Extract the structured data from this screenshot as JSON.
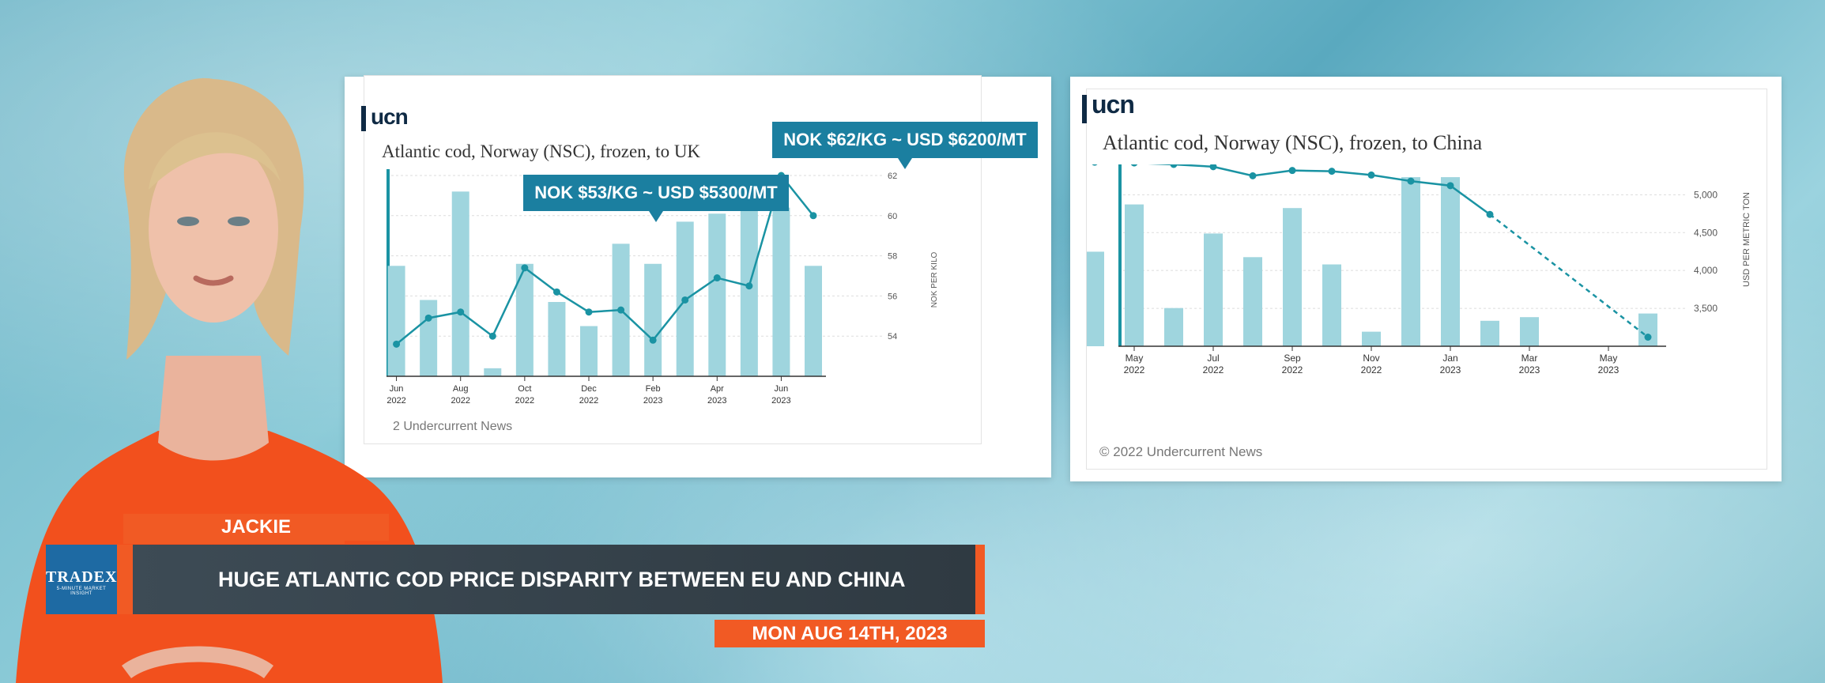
{
  "lower_third": {
    "presenter_name": "JACKIE",
    "headline": "HUGE ATLANTIC COD PRICE DISPARITY BETWEEN EU AND CHINA",
    "date": "MON AUG 14TH, 2023",
    "brand": "TRADEX",
    "brand_sub": "5-MINUTE MARKET INSIGHT"
  },
  "colors": {
    "accent_orange": "#f15a24",
    "chart_teal": "#1a93a3",
    "bar_teal": "#9fd5de",
    "callout_blue": "#1b7fa0"
  },
  "left_panel": {
    "logo": "ucn",
    "copyright": "2 Undercurrent News",
    "callout_low": "NOK $53/KG ~ USD $5300/MT",
    "callout_high": "NOK $62/KG ~ USD $6200/MT"
  },
  "right_panel": {
    "logo": "ucn",
    "copyright": "© 2022 Undercurrent News"
  },
  "chart_data": [
    {
      "type": "bar",
      "title": "Atlantic cod, Norway (NSC), frozen, to UK",
      "ylabel": "NOK PER KILO",
      "ylim": [
        52,
        62
      ],
      "yticks": [
        "62",
        "60",
        "58",
        "56",
        "54"
      ],
      "xticks": [
        [
          "Jun",
          "2022"
        ],
        [
          "Aug",
          "2022"
        ],
        [
          "Oct",
          "2022"
        ],
        [
          "Dec",
          "2022"
        ],
        [
          "Feb",
          "2023"
        ],
        [
          "Apr",
          "2023"
        ],
        [
          "Jun",
          "2023"
        ]
      ],
      "series": [
        {
          "kind": "bar",
          "values": [
            null,
            0.55,
            0.38,
            0.92,
            0.04,
            0.56,
            0.37,
            0.25,
            0.66,
            0.56,
            0.77,
            0.81,
            0.97,
            0.84,
            0.55
          ]
        },
        {
          "kind": "line",
          "values": [
            null,
            53.6,
            54.9,
            55.2,
            54.0,
            57.4,
            56.2,
            55.2,
            55.3,
            53.8,
            55.8,
            56.9,
            56.5,
            62.0,
            60.0
          ]
        }
      ],
      "line_min": 52,
      "line_max": 62
    },
    {
      "type": "bar",
      "title": "Atlantic cod, Norway (NSC), frozen, to China",
      "ylabel": "USD PER METRIC TON",
      "ylim": [
        3000,
        5400
      ],
      "yticks": [
        "5,000",
        "4,500",
        "4,000",
        "3,500"
      ],
      "xticks": [
        [
          "May",
          "2022"
        ],
        [
          "Jul",
          "2022"
        ],
        [
          "Sep",
          "2022"
        ],
        [
          "Nov",
          "2022"
        ],
        [
          "Jan",
          "2023"
        ],
        [
          "Mar",
          "2023"
        ],
        [
          "May",
          "2023"
        ]
      ],
      "series": [
        {
          "kind": "bar",
          "values": [
            0.52,
            0.78,
            0.21,
            0.62,
            0.49,
            0.76,
            0.45,
            0.08,
            0.93,
            0.93,
            0.14,
            0.16,
            null,
            null,
            0.18
          ]
        },
        {
          "kind": "line",
          "values": [
            5430,
            5420,
            5400,
            5370,
            5250,
            5320,
            5310,
            5260,
            5180,
            5120,
            4740,
            null,
            null,
            null,
            3120
          ]
        }
      ]
    }
  ]
}
